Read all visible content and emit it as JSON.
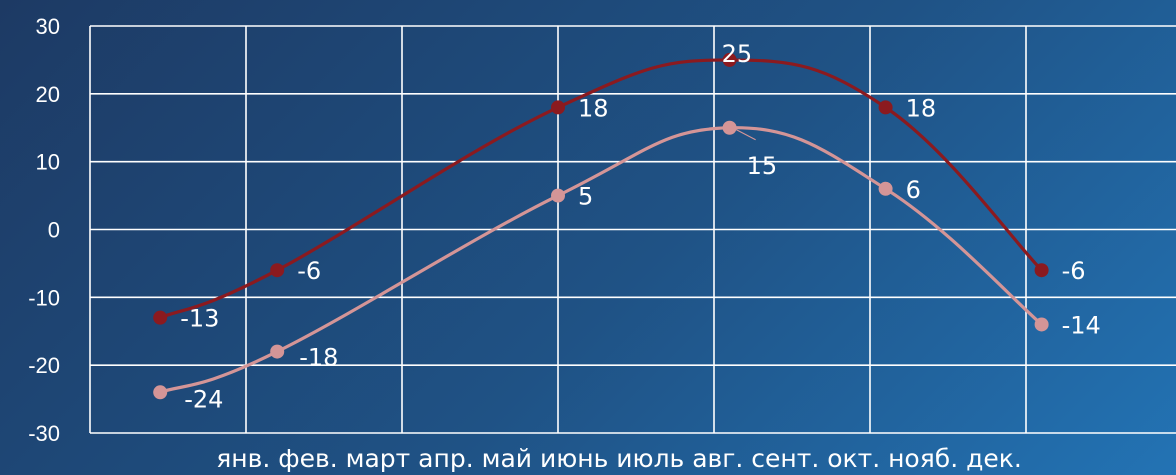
{
  "chart_data": {
    "type": "line",
    "x_axis_text": "янв. фев. март апр. май июнь июль авг. сент. окт. нояб. дек.",
    "y_ticks": [
      "30",
      "20",
      "10",
      "0",
      "-10",
      "-20",
      "-30"
    ],
    "ylim": [
      -30,
      30
    ],
    "grid": true,
    "series": [
      {
        "color": "#8b1a1f",
        "points": [
          {
            "x": 0.45,
            "y": -13,
            "label": "-13"
          },
          {
            "x": 1.2,
            "y": -6,
            "label": "-6"
          },
          {
            "x": 3.0,
            "y": 18,
            "label": "18"
          },
          {
            "x": 4.1,
            "y": 25,
            "label": "25"
          },
          {
            "x": 5.1,
            "y": 18,
            "label": "18"
          },
          {
            "x": 6.1,
            "y": -6,
            "label": "-6"
          }
        ]
      },
      {
        "color": "#d49597",
        "points": [
          {
            "x": 0.45,
            "y": -24,
            "label": "-24"
          },
          {
            "x": 1.2,
            "y": -18,
            "label": "-18"
          },
          {
            "x": 3.0,
            "y": 5,
            "label": "5"
          },
          {
            "x": 4.1,
            "y": 15,
            "label": "15"
          },
          {
            "x": 5.1,
            "y": 6,
            "label": "6"
          },
          {
            "x": 6.1,
            "y": -14,
            "label": "-14"
          }
        ]
      }
    ]
  }
}
